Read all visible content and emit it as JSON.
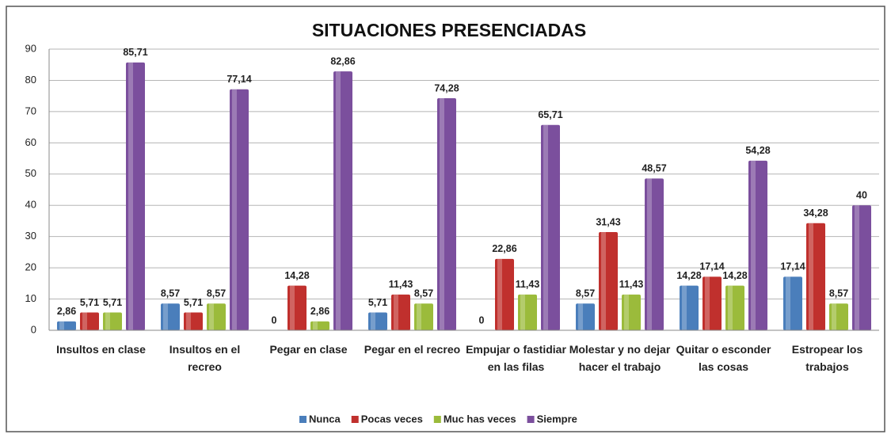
{
  "chart_data": {
    "type": "bar",
    "title": "SITUACIONES PRESENCIADAS",
    "categories": [
      "Insultos en clase",
      "Insultos en el recreo",
      "Pegar en clase",
      "Pegar en el recreo",
      "Empujar o fastidiar en las filas",
      "Molestar y no dejar hacer el trabajo",
      "Quitar o esconder las cosas",
      "Estropear los trabajos"
    ],
    "series": [
      {
        "name": "Nunca",
        "color": "#4a7ebb",
        "values": [
          2.86,
          8.57,
          0,
          5.71,
          0,
          8.57,
          14.28,
          17.14
        ],
        "value_labels": [
          "2,86",
          "8,57",
          "0",
          "5,71",
          "0",
          "8,57",
          "14,28",
          "17,14"
        ]
      },
      {
        "name": "Pocas veces",
        "color": "#c0302d",
        "values": [
          5.71,
          5.71,
          14.28,
          11.43,
          22.86,
          31.43,
          17.14,
          34.28
        ],
        "value_labels": [
          "5,71",
          "5,71",
          "14,28",
          "11,43",
          "22,86",
          "31,43",
          "17,14",
          "34,28"
        ]
      },
      {
        "name": "Muc has veces",
        "color": "#9bbb3b",
        "values": [
          5.71,
          8.57,
          2.86,
          8.57,
          11.43,
          11.43,
          14.28,
          8.57
        ],
        "value_labels": [
          "5,71",
          "8,57",
          "2,86",
          "8,57",
          "11,43",
          "11,43",
          "14,28",
          "8,57"
        ]
      },
      {
        "name": "Siempre",
        "color": "#7b4f9d",
        "values": [
          85.71,
          77.14,
          82.86,
          74.28,
          65.71,
          48.57,
          54.28,
          40
        ],
        "value_labels": [
          "85,71",
          "77,14",
          "82,86",
          "74,28",
          "65,71",
          "48,57",
          "54,28",
          "40"
        ]
      }
    ],
    "ylim": [
      0,
      90
    ],
    "yticks": [
      0,
      10,
      20,
      30,
      40,
      50,
      60,
      70,
      80,
      90
    ],
    "grid": true,
    "legend": "bottom"
  }
}
